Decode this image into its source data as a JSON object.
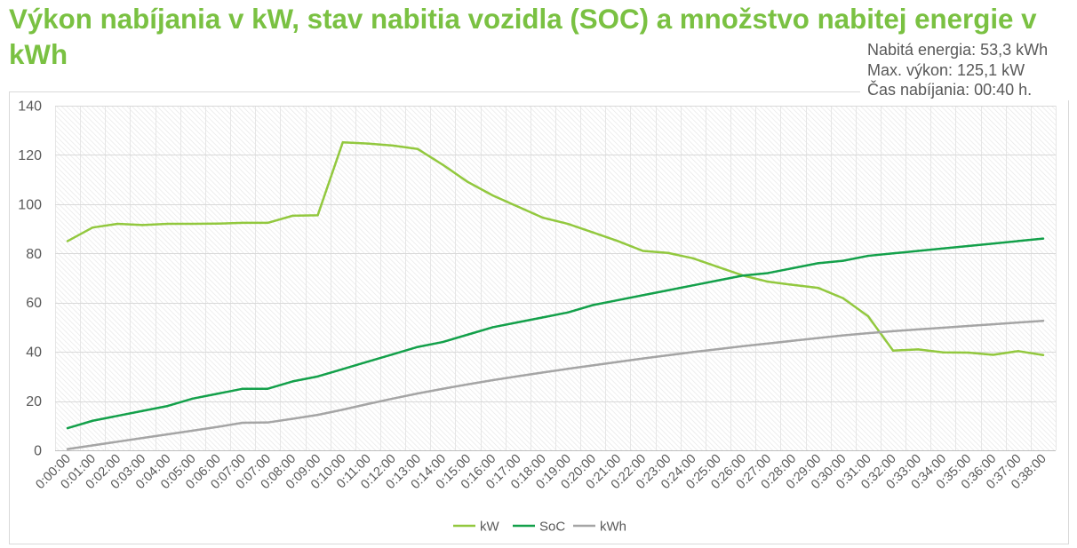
{
  "chart_data": {
    "type": "line",
    "title": "Výkon nabíjania v kW, stav nabitia vozidla (SOC) a množstvo nabitej energie v kWh",
    "categories": [
      "0:00:00",
      "0:01:00",
      "0:02:00",
      "0:03:00",
      "0:04:00",
      "0:05:00",
      "0:06:00",
      "0:07:00",
      "0:07:00",
      "0:08:00",
      "0:09:00",
      "0:10:00",
      "0:11:00",
      "0:12:00",
      "0:13:00",
      "0:14:00",
      "0:15:00",
      "0:16:00",
      "0:17:00",
      "0:18:00",
      "0:19:00",
      "0:20:00",
      "0:21:00",
      "0:22:00",
      "0:23:00",
      "0:24:00",
      "0:25:00",
      "0:26:00",
      "0:27:00",
      "0:28:00",
      "0:29:00",
      "0:30:00",
      "0:31:00",
      "0:32:00",
      "0:33:00",
      "0:34:00",
      "0:35:00",
      "0:36:00",
      "0:37:00",
      "0:38:00"
    ],
    "series": [
      {
        "name": "kW",
        "color": "#92c83e",
        "values": [
          85,
          90.5,
          92,
          91.5,
          92,
          92,
          92.1,
          92.4,
          92.4,
          95.3,
          95.5,
          125.1,
          124.6,
          123.8,
          122.4,
          116,
          109,
          103.5,
          99,
          94.5,
          92,
          88.5,
          85,
          81,
          80.2,
          78,
          74.5,
          71,
          68.5,
          67.2,
          66,
          61.8,
          54.5,
          40.5,
          41,
          39.8,
          39.7,
          38.8,
          40.3,
          38.7
        ]
      },
      {
        "name": "SoC",
        "color": "#13a04a",
        "values": [
          9,
          12,
          14,
          16,
          18,
          21,
          23,
          25,
          25,
          28,
          30,
          33,
          36,
          39,
          42,
          44,
          47,
          50,
          52,
          54,
          56,
          59,
          61,
          63,
          65,
          67,
          69,
          71,
          72,
          74,
          76,
          77,
          79,
          80,
          81,
          82,
          83,
          84,
          85,
          86
        ]
      },
      {
        "name": "kWh",
        "color": "#a5a5a5",
        "values": [
          0.5,
          2,
          3.5,
          5,
          6.5,
          8,
          9.5,
          11.2,
          11.3,
          12.8,
          14.4,
          16.5,
          18.8,
          21,
          23.1,
          25,
          26.8,
          28.5,
          30.1,
          31.6,
          33.1,
          34.5,
          35.9,
          37.3,
          38.6,
          39.9,
          41.1,
          42.3,
          43.4,
          44.5,
          45.6,
          46.7,
          47.6,
          48.4,
          49.1,
          49.8,
          50.5,
          51.2,
          51.9,
          52.6
        ]
      }
    ],
    "ylim": [
      0,
      140
    ],
    "yticks": [
      0,
      20,
      40,
      60,
      80,
      100,
      120,
      140
    ],
    "grid": true,
    "legend": "bottom"
  },
  "summary": {
    "energy": "Nabitá energia: 53,3 kWh",
    "max_power": "Max. výkon: 125,1 kW",
    "duration": "Čas nabíjania: 00:40 h."
  },
  "colors": {
    "title": "#7ac142",
    "text": "#595959",
    "grid": "#d9d9d9",
    "vgrid": "#e6e6e6",
    "frame": "#d9d9d9"
  }
}
